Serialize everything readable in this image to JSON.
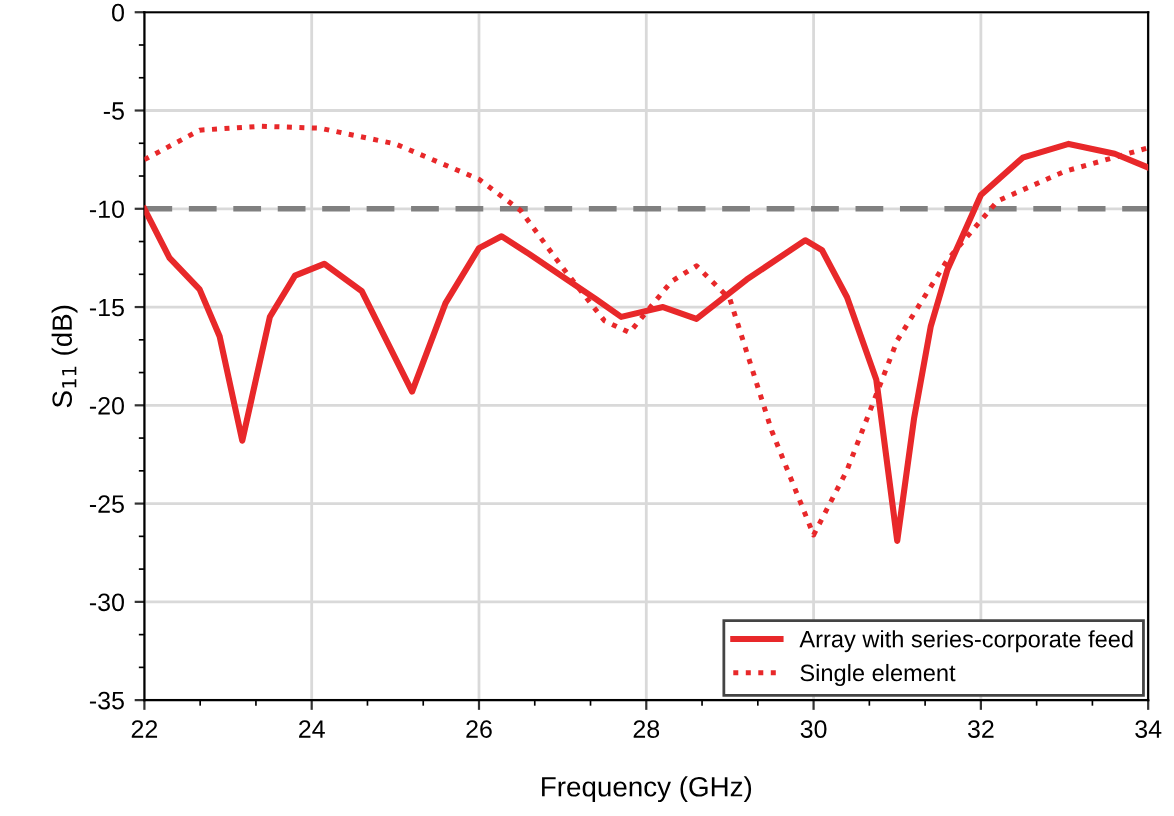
{
  "chart_data": {
    "type": "line",
    "xlabel": "Frequency (GHz)",
    "ylabel": "S$_{11}$ (dB)",
    "xlim": [
      22,
      34
    ],
    "xticks": [
      22,
      24,
      26,
      28,
      30,
      32,
      34
    ],
    "ylim": [
      -35,
      0
    ],
    "yticks": [
      -35,
      -30,
      -25,
      -20,
      -15,
      -10,
      -5,
      0
    ],
    "grid": true,
    "legend": "bottom right",
    "marker": "none",
    "series": [
      {
        "name": "Array with series-corporate feed",
        "color": "#e8282a",
        "line_style": "solid",
        "x": [
          22,
          22.3,
          22.66,
          22.9,
          23.17,
          23.5,
          23.8,
          24.15,
          24.6,
          25.2,
          25.6,
          26.0,
          26.27,
          26.6,
          27.05,
          27.4,
          27.7,
          28.2,
          28.6,
          29.2,
          29.9,
          30.1,
          30.4,
          30.75,
          31.0,
          31.2,
          31.4,
          31.6,
          32.0,
          32.5,
          33.05,
          33.6,
          34
        ],
        "values": [
          -10,
          -12.5,
          -14.1,
          -16.5,
          -21.8,
          -15.5,
          -13.4,
          -12.8,
          -14.2,
          -19.3,
          -14.8,
          -12.0,
          -11.4,
          -12.3,
          -13.6,
          -14.6,
          -15.5,
          -15.0,
          -15.6,
          -13.6,
          -11.6,
          -12.1,
          -14.5,
          -18.7,
          -26.9,
          -20.7,
          -16.0,
          -13.1,
          -9.3,
          -7.4,
          -6.7,
          -7.2,
          -7.9
        ]
      },
      {
        "name": "Single element",
        "color": "#e8282a",
        "line_style": "dotted",
        "x": [
          22,
          22.66,
          23.4,
          24.1,
          25,
          26,
          26.5,
          27,
          27.5,
          27.8,
          28.3,
          28.6,
          29,
          29.5,
          30,
          30.4,
          31,
          31.6,
          32.2,
          33,
          34
        ],
        "values": [
          -7.5,
          -6.0,
          -5.8,
          -5.9,
          -6.7,
          -8.5,
          -10.1,
          -13.0,
          -15.7,
          -16.3,
          -13.7,
          -12.9,
          -14.6,
          -21.3,
          -26.6,
          -23.3,
          -16.7,
          -12.6,
          -9.6,
          -8.1,
          -6.9
        ]
      }
    ],
    "ref_lines": [
      {
        "axis": "y",
        "value": -10,
        "color": "#808080",
        "line_style": "dashed"
      }
    ]
  }
}
